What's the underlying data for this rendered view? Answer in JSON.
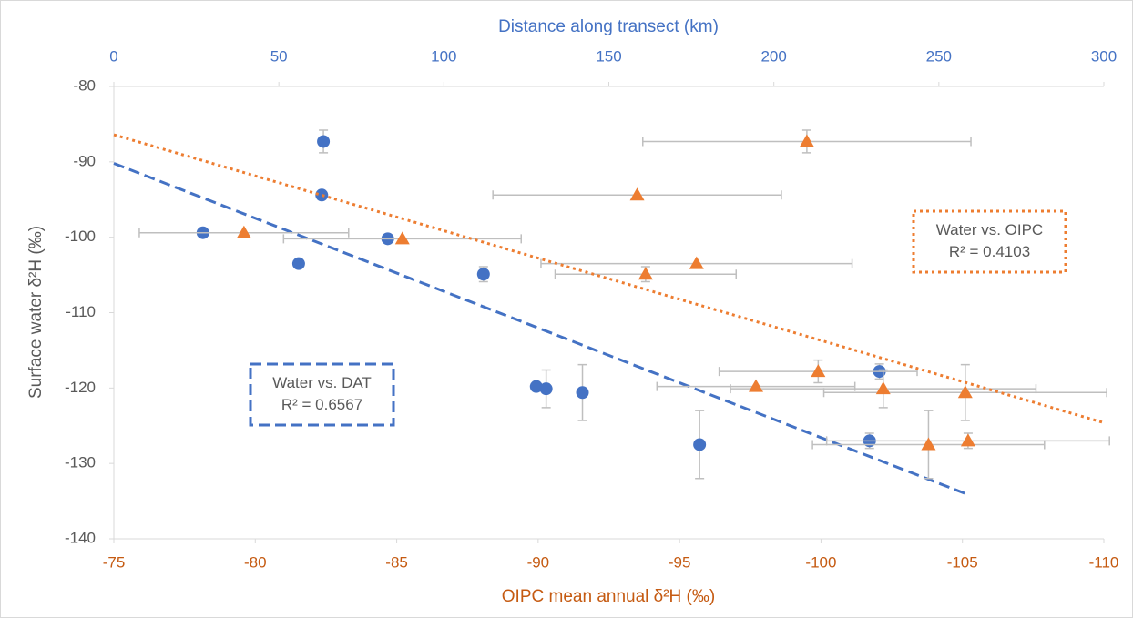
{
  "chart_data": {
    "type": "scatter",
    "x_title": "OIPC mean annual δ²H (‰)",
    "x2_title": "Distance along transect (km)",
    "y_title": "Surface water δ²H (‰)",
    "xlim": [
      -75,
      -110
    ],
    "xticks": [
      -75,
      -80,
      -85,
      -90,
      -95,
      -100,
      -105,
      -110
    ],
    "x2lim": [
      0,
      300
    ],
    "x2ticks": [
      0,
      50,
      100,
      150,
      200,
      250,
      300
    ],
    "ylim": [
      -140,
      -80
    ],
    "yticks": [
      -140,
      -130,
      -120,
      -110,
      -100,
      -90,
      -80
    ],
    "series": [
      {
        "color": "#4472c4",
        "marker": "circle",
        "axis": "x2",
        "x": [
          27,
          56,
          63.5,
          63,
          83,
          112,
          128,
          131,
          142,
          177.5,
          229,
          232
        ],
        "values": [
          -99.4,
          -103.5,
          -87.3,
          -94.4,
          -100.2,
          -104.9,
          -119.8,
          -120.1,
          -120.6,
          -127.5,
          -127.0,
          -117.8
        ],
        "y_errors": [
          0,
          0,
          1.5,
          0,
          0,
          1,
          0,
          2.5,
          3.7,
          4.5,
          1,
          1
        ],
        "trendline": {
          "style": "dashed",
          "x": [
            0,
            258
          ],
          "values": [
            -90.2,
            -134
          ],
          "label": [
            "Water vs. DAT",
            "R² = 0.6567"
          ]
        }
      },
      {
        "color": "#ed7d31",
        "marker": "triangle",
        "axis": "x",
        "x": [
          -79.6,
          -85.2,
          -93.5,
          -93.8,
          -95.6,
          -97.7,
          -99.5,
          -99.9,
          -102.2,
          -105.2,
          -105.1,
          -103.8
        ],
        "values": [
          -99.4,
          -100.2,
          -94.4,
          -104.9,
          -103.5,
          -119.8,
          -87.3,
          -117.8,
          -120.1,
          -127.0,
          -120.6,
          -127.5
        ],
        "x_errors": [
          3.7,
          4.2,
          5.1,
          3.2,
          5.5,
          3.5,
          5.8,
          3.5,
          5.4,
          5,
          5,
          4.1
        ],
        "y_errors": [
          0,
          0,
          0,
          1,
          0,
          0,
          1.5,
          1.5,
          2.5,
          1,
          3.7,
          4.5
        ],
        "trendline": {
          "style": "dotted",
          "x": [
            -75,
            -110
          ],
          "values": [
            -86.4,
            -124.6
          ],
          "label": [
            "Water vs. OIPC",
            "R² = 0.4103"
          ]
        }
      }
    ]
  }
}
